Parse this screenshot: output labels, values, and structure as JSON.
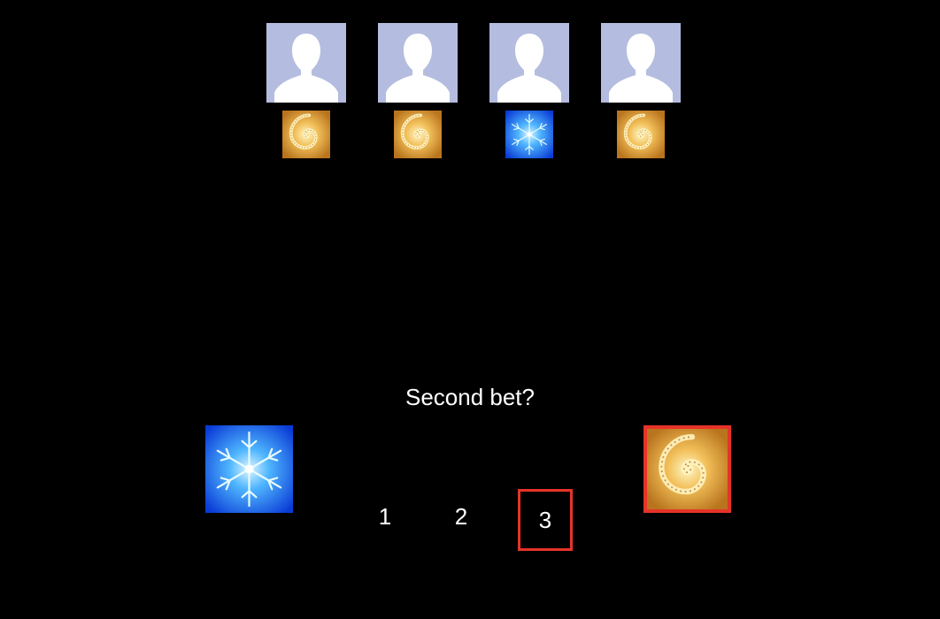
{
  "players": [
    {
      "avatar_icon": "default-person-avatar",
      "choice": "gold-spiral-fractal"
    },
    {
      "avatar_icon": "default-person-avatar",
      "choice": "gold-spiral-fractal"
    },
    {
      "avatar_icon": "default-person-avatar",
      "choice": "blue-snowflake-fractal"
    },
    {
      "avatar_icon": "default-person-avatar",
      "choice": "gold-spiral-fractal"
    }
  ],
  "prompt": "Second bet?",
  "options": {
    "left": {
      "icon": "blue-snowflake-fractal",
      "selected": false
    },
    "right": {
      "icon": "gold-spiral-fractal",
      "selected": true
    }
  },
  "bets": [
    {
      "label": "1",
      "selected": false
    },
    {
      "label": "2",
      "selected": false
    },
    {
      "label": "3",
      "selected": true
    }
  ],
  "colors": {
    "background": "#000000",
    "avatar_bg": "#b4bddf",
    "selection": "#e63329",
    "text": "#ffffff"
  }
}
